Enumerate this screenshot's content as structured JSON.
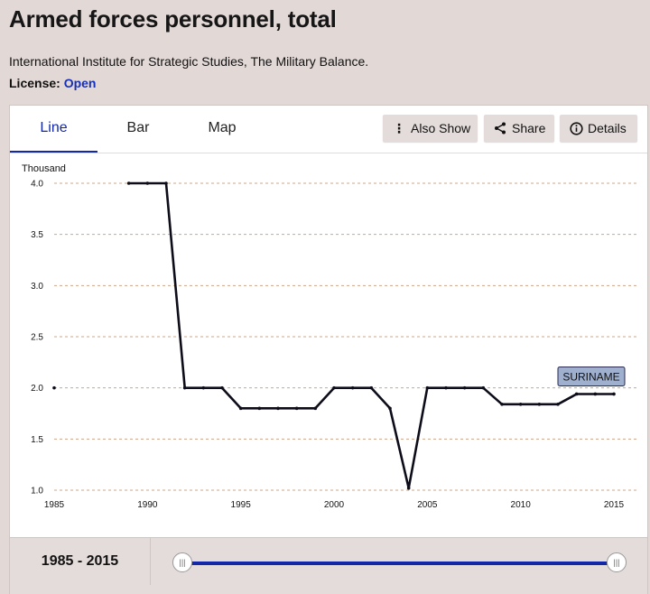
{
  "header": {
    "title": "Armed forces personnel, total",
    "source": "International Institute for Strategic Studies, The Military Balance.",
    "license_label": "License:",
    "license_value": "Open"
  },
  "tabs": [
    {
      "label": "Line",
      "active": true
    },
    {
      "label": "Bar",
      "active": false
    },
    {
      "label": "Map",
      "active": false
    }
  ],
  "actions": {
    "also_show": {
      "label": "Also Show",
      "icon": "vertical-dots-icon"
    },
    "share": {
      "label": "Share",
      "icon": "share-icon"
    },
    "details": {
      "label": "Details",
      "icon": "info-icon"
    }
  },
  "range": {
    "label": "1985 - 2015",
    "start": 1985,
    "end": 2015
  },
  "colors": {
    "line": "#0d0d1a",
    "accent": "#1228a8",
    "grid": "#c9a88f",
    "tag_bg": "#9fb0cf"
  },
  "chart_data": {
    "type": "line",
    "ylabel": "Thousand",
    "xlim": [
      1985,
      2015
    ],
    "ylim": [
      1.0,
      4.0
    ],
    "x_ticks": [
      1985,
      1990,
      1995,
      2000,
      2005,
      2010,
      2015
    ],
    "y_ticks": [
      "1.0",
      "1.5",
      "2.0",
      "2.5",
      "3.0",
      "3.5",
      "4.0"
    ],
    "grid": true,
    "series": [
      {
        "name": "SURINAME",
        "points": [
          [
            1985,
            2.0
          ],
          null,
          [
            1989,
            4.0
          ],
          [
            1990,
            4.0
          ],
          [
            1991,
            4.0
          ],
          [
            1992,
            2.0
          ],
          [
            1993,
            2.0
          ],
          [
            1994,
            2.0
          ],
          [
            1995,
            1.8
          ],
          [
            1996,
            1.8
          ],
          [
            1997,
            1.8
          ],
          [
            1998,
            1.8
          ],
          [
            1999,
            1.8
          ],
          [
            2000,
            2.0
          ],
          [
            2001,
            2.0
          ],
          [
            2002,
            2.0
          ],
          [
            2003,
            1.8
          ],
          [
            2004,
            1.02
          ],
          [
            2005,
            2.0
          ],
          [
            2006,
            2.0
          ],
          [
            2007,
            2.0
          ],
          [
            2008,
            2.0
          ],
          [
            2009,
            1.84
          ],
          [
            2010,
            1.84
          ],
          [
            2011,
            1.84
          ],
          [
            2012,
            1.84
          ],
          [
            2013,
            1.94
          ],
          [
            2014,
            1.94
          ],
          [
            2015,
            1.94
          ]
        ]
      }
    ]
  }
}
